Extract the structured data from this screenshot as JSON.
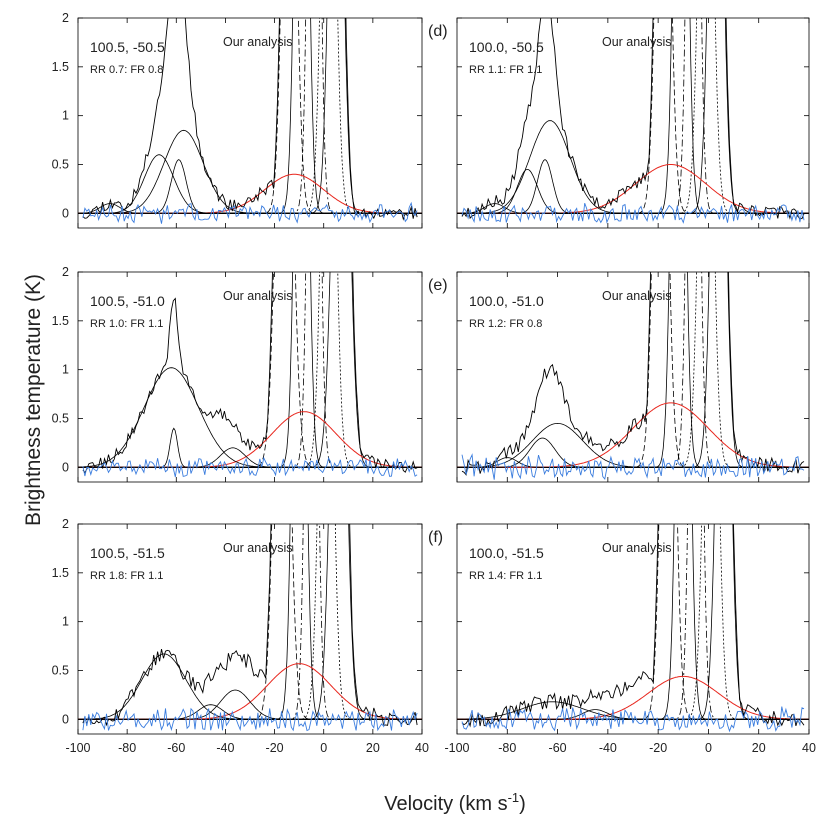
{
  "figure": {
    "ylabel": "Brightness temperature (K)",
    "xlabel_main": "Velocity (km s",
    "xlabel_sup": "-1",
    "xlabel_close": ")"
  },
  "colors": {
    "residual": "#3b7dde",
    "wing": "#e8261d",
    "data": "#000000"
  },
  "chart_data": [
    {
      "type": "line",
      "panel": "a",
      "label": "",
      "coords": "100.5, -50.5",
      "ratio": "RR 0.7: FR 0.8",
      "annotation": "Our analysis",
      "xlim": [
        -100,
        40
      ],
      "ylim": [
        -0.15,
        2
      ],
      "xticks": [
        "-100",
        "-80",
        "-60",
        "-40",
        "-20",
        "0",
        "20",
        "40"
      ],
      "yticks": [
        "0",
        "0.5",
        "1",
        "1.5",
        "2"
      ],
      "components": [
        {
          "name": "wing",
          "amp": 0.4,
          "center": -12,
          "sigma": 12
        },
        {
          "name": "g1",
          "amp": 0.6,
          "center": -67,
          "sigma": 6
        },
        {
          "name": "g2",
          "amp": 0.85,
          "center": -57,
          "sigma": 8
        },
        {
          "name": "g3",
          "amp": 0.1,
          "center": -87,
          "sigma": 4
        },
        {
          "name": "g4",
          "amp": 0.55,
          "center": -59,
          "sigma": 3
        }
      ],
      "local": [
        {
          "amp": 6,
          "center": -14,
          "sigma": 2.5,
          "style": "dashed"
        },
        {
          "amp": 8,
          "center": -9,
          "sigma": 2.2,
          "style": "solid"
        },
        {
          "amp": 8,
          "center": -4,
          "sigma": 2.0,
          "style": "dashdot"
        },
        {
          "amp": 6,
          "center": 2,
          "sigma": 2.5,
          "style": "dotted"
        },
        {
          "amp": 6,
          "center": 5,
          "sigma": 2.5,
          "style": "solid"
        }
      ],
      "observed_extra": [
        {
          "amp": 1.0,
          "center": -60,
          "sigma": 4
        }
      ],
      "noise": 0.04,
      "seed": 11
    },
    {
      "type": "line",
      "panel": "d",
      "label": "(d)",
      "coords": "100.0, -50.5",
      "ratio": "RR 1.1: FR 1.1",
      "annotation": "Our analysis",
      "xlim": [
        -100,
        40
      ],
      "ylim": [
        -0.15,
        2
      ],
      "xticks": [
        "-100",
        "-80",
        "-60",
        "-40",
        "-20",
        "0",
        "20",
        "40"
      ],
      "yticks": [
        "0",
        "0.5",
        "1",
        "1.5",
        "2"
      ],
      "components": [
        {
          "name": "wing",
          "amp": 0.5,
          "center": -15,
          "sigma": 14
        },
        {
          "name": "g1",
          "amp": 0.45,
          "center": -72,
          "sigma": 4
        },
        {
          "name": "g2",
          "amp": 0.95,
          "center": -63,
          "sigma": 8
        },
        {
          "name": "g3",
          "amp": 0.55,
          "center": -65,
          "sigma": 3
        },
        {
          "name": "g4",
          "amp": 0.1,
          "center": -85,
          "sigma": 4
        }
      ],
      "local": [
        {
          "amp": 6,
          "center": -18,
          "sigma": 2.5,
          "style": "dashed"
        },
        {
          "amp": 8,
          "center": -11,
          "sigma": 2.2,
          "style": "solid"
        },
        {
          "amp": 8,
          "center": -6,
          "sigma": 2.0,
          "style": "dashdot"
        },
        {
          "amp": 6,
          "center": -1,
          "sigma": 2.5,
          "style": "dotted"
        },
        {
          "amp": 6,
          "center": 3,
          "sigma": 2.5,
          "style": "solid"
        }
      ],
      "observed_extra": [
        {
          "amp": 0.7,
          "center": -64,
          "sigma": 3
        }
      ],
      "noise": 0.04,
      "seed": 23
    },
    {
      "type": "line",
      "panel": "b",
      "label": "",
      "coords": "100.5, -51.0",
      "ratio": "RR 1.0: FR 1.1",
      "annotation": "Our analysis",
      "xlim": [
        -100,
        40
      ],
      "ylim": [
        -0.15,
        2
      ],
      "xticks": [
        "-100",
        "-80",
        "-60",
        "-40",
        "-20",
        "0",
        "20",
        "40"
      ],
      "yticks": [
        "0",
        "0.5",
        "1",
        "1.5",
        "2"
      ],
      "components": [
        {
          "name": "wing",
          "amp": 0.57,
          "center": -8,
          "sigma": 13
        },
        {
          "name": "g1",
          "amp": 1.02,
          "center": -62,
          "sigma": 11
        },
        {
          "name": "g2",
          "amp": 0.4,
          "center": -61,
          "sigma": 1.5
        },
        {
          "name": "g3",
          "amp": 0.2,
          "center": -37,
          "sigma": 5
        }
      ],
      "local": [
        {
          "amp": 6,
          "center": -16,
          "sigma": 3.0,
          "style": "dashed"
        },
        {
          "amp": 8,
          "center": -9,
          "sigma": 2.2,
          "style": "solid"
        },
        {
          "amp": 8,
          "center": -4,
          "sigma": 2.0,
          "style": "dashdot"
        },
        {
          "amp": 6,
          "center": 2,
          "sigma": 2.5,
          "style": "dotted"
        },
        {
          "amp": 6,
          "center": 7,
          "sigma": 3.0,
          "style": "solid"
        }
      ],
      "observed_extra": [
        {
          "amp": 0.35,
          "center": -61,
          "sigma": 1.5
        },
        {
          "amp": 0.2,
          "center": -42,
          "sigma": 5
        }
      ],
      "noise": 0.04,
      "seed": 37
    },
    {
      "type": "line",
      "panel": "e",
      "label": "(e)",
      "coords": "100.0, -51.0",
      "ratio": "RR 1.2: FR 0.8",
      "annotation": "Our analysis",
      "xlim": [
        -100,
        40
      ],
      "ylim": [
        -0.15,
        2
      ],
      "xticks": [
        "-100",
        "-80",
        "-60",
        "-40",
        "-20",
        "0",
        "20",
        "40"
      ],
      "yticks": [
        "0",
        "0.5",
        "1",
        "1.5",
        "2"
      ],
      "components": [
        {
          "name": "wing",
          "amp": 0.66,
          "center": -15,
          "sigma": 15
        },
        {
          "name": "g1",
          "amp": 0.45,
          "center": -60,
          "sigma": 10
        },
        {
          "name": "g2",
          "amp": 0.3,
          "center": -66,
          "sigma": 5
        },
        {
          "name": "g3",
          "amp": 0.1,
          "center": -80,
          "sigma": 4
        }
      ],
      "local": [
        {
          "amp": 6,
          "center": -19,
          "sigma": 2.5,
          "style": "dashed"
        },
        {
          "amp": 8,
          "center": -12,
          "sigma": 2.2,
          "style": "solid"
        },
        {
          "amp": 8,
          "center": -6,
          "sigma": 2.0,
          "style": "dashdot"
        },
        {
          "amp": 6,
          "center": -1,
          "sigma": 2.5,
          "style": "dotted"
        },
        {
          "amp": 6,
          "center": 4,
          "sigma": 2.5,
          "style": "solid"
        }
      ],
      "observed_extra": [
        {
          "amp": 0.35,
          "center": -62,
          "sigma": 4
        }
      ],
      "noise": 0.05,
      "seed": 41
    },
    {
      "type": "line",
      "panel": "c",
      "label": "",
      "coords": "100.5, -51.5",
      "ratio": "RR 1.8: FR 1.1",
      "annotation": "Our analysis",
      "xlim": [
        -100,
        40
      ],
      "ylim": [
        -0.15,
        2
      ],
      "xticks": [
        "-100",
        "-80",
        "-60",
        "-40",
        "-20",
        "0",
        "20",
        "40"
      ],
      "yticks": [
        "0",
        "0.5",
        "1",
        "1.5",
        "2"
      ],
      "components": [
        {
          "name": "wing",
          "amp": 0.57,
          "center": -10,
          "sigma": 13
        },
        {
          "name": "g1",
          "amp": 0.67,
          "center": -65,
          "sigma": 9
        },
        {
          "name": "g2",
          "amp": 0.15,
          "center": -46,
          "sigma": 5
        },
        {
          "name": "g3",
          "amp": 0.3,
          "center": -36,
          "sigma": 6
        }
      ],
      "local": [
        {
          "amp": 6,
          "center": -17,
          "sigma": 2.8,
          "style": "dashed"
        },
        {
          "amp": 8,
          "center": -10,
          "sigma": 2.2,
          "style": "solid"
        },
        {
          "amp": 8,
          "center": -5,
          "sigma": 2.0,
          "style": "dashdot"
        },
        {
          "amp": 6,
          "center": 1,
          "sigma": 2.5,
          "style": "dotted"
        },
        {
          "amp": 6,
          "center": 6,
          "sigma": 2.8,
          "style": "solid"
        }
      ],
      "observed_extra": [
        {
          "amp": 0.25,
          "center": -35,
          "sigma": 8
        }
      ],
      "noise": 0.05,
      "seed": 53
    },
    {
      "type": "line",
      "panel": "f",
      "label": "(f)",
      "coords": "100.0, -51.5",
      "ratio": "RR 1.4: FR 1.1",
      "annotation": "Our analysis",
      "xlim": [
        -100,
        40
      ],
      "ylim": [
        -0.15,
        2
      ],
      "xticks": [
        "-100",
        "-80",
        "-60",
        "-40",
        "-20",
        "0",
        "20",
        "40"
      ],
      "yticks": [
        "0",
        "0.5",
        "1",
        "1.5",
        "2"
      ],
      "components": [
        {
          "name": "wing",
          "amp": 0.44,
          "center": -10,
          "sigma": 14
        },
        {
          "name": "g1",
          "amp": 0.18,
          "center": -62,
          "sigma": 12
        },
        {
          "name": "g2",
          "amp": 0.1,
          "center": -45,
          "sigma": 5
        }
      ],
      "local": [
        {
          "amp": 6,
          "center": -16,
          "sigma": 2.5,
          "style": "dashed"
        },
        {
          "amp": 8,
          "center": -10,
          "sigma": 2.2,
          "style": "solid"
        },
        {
          "amp": 8,
          "center": -5,
          "sigma": 2.0,
          "style": "dashdot"
        },
        {
          "amp": 6,
          "center": 1,
          "sigma": 2.5,
          "style": "dotted"
        },
        {
          "amp": 6,
          "center": 6,
          "sigma": 2.5,
          "style": "solid"
        }
      ],
      "observed_extra": [
        {
          "amp": 0.2,
          "center": -30,
          "sigma": 10
        }
      ],
      "noise": 0.05,
      "seed": 67
    }
  ]
}
